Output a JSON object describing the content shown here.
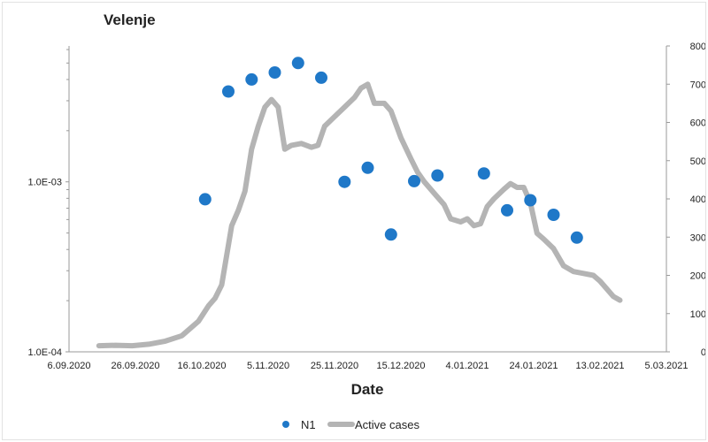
{
  "chart_data": {
    "type": "scatter+line",
    "title": "Velenje",
    "xlabel": "Date",
    "ylabel_left": "",
    "ylabel_right": "",
    "x_ticks": [
      "6.09.2020",
      "26.09.2020",
      "16.10.2020",
      "5.11.2020",
      "25.11.2020",
      "15.12.2020",
      "4.01.2021",
      "24.01.2021",
      "13.02.2021",
      "5.03.2021"
    ],
    "xlim": [
      "2020-09-06",
      "2021-03-05"
    ],
    "y_left": {
      "scale": "log",
      "ylim": [
        0.0001,
        0.0063
      ],
      "ticks": [
        "1.0E-04",
        "1.0E-03"
      ],
      "tick_values": [
        0.0001,
        0.001
      ]
    },
    "y_right": {
      "scale": "linear",
      "ylim": [
        0,
        800
      ],
      "ticks": [
        "0",
        "100",
        "200",
        "300",
        "400",
        "500",
        "600",
        "700",
        "800"
      ],
      "tick_values": [
        0,
        100,
        200,
        300,
        400,
        500,
        600,
        700,
        800
      ]
    },
    "legend": {
      "placement": "bottom",
      "entries": [
        "N1",
        "Active cases"
      ]
    },
    "series": [
      {
        "name": "N1",
        "type": "scatter",
        "axis": "left",
        "color": "#1f78c8",
        "points": [
          {
            "x": "2020-10-17",
            "y": 0.00079
          },
          {
            "x": "2020-10-24",
            "y": 0.0034
          },
          {
            "x": "2020-10-31",
            "y": 0.004
          },
          {
            "x": "2020-11-07",
            "y": 0.0044
          },
          {
            "x": "2020-11-14",
            "y": 0.005
          },
          {
            "x": "2020-11-21",
            "y": 0.0041
          },
          {
            "x": "2020-11-28",
            "y": 0.001
          },
          {
            "x": "2020-12-05",
            "y": 0.00121
          },
          {
            "x": "2020-12-12",
            "y": 0.00049
          },
          {
            "x": "2020-12-19",
            "y": 0.00101
          },
          {
            "x": "2020-12-26",
            "y": 0.00109
          },
          {
            "x": "2021-01-09",
            "y": 0.00112
          },
          {
            "x": "2021-01-16",
            "y": 0.00068
          },
          {
            "x": "2021-01-23",
            "y": 0.00078
          },
          {
            "x": "2021-01-30",
            "y": 0.00064
          },
          {
            "x": "2021-02-06",
            "y": 0.00047
          }
        ]
      },
      {
        "name": "Active cases",
        "type": "line",
        "axis": "right",
        "color": "#b4b4b4",
        "points": [
          {
            "x": "2020-09-15",
            "y": 16
          },
          {
            "x": "2020-09-20",
            "y": 17
          },
          {
            "x": "2020-09-25",
            "y": 16
          },
          {
            "x": "2020-09-30",
            "y": 20
          },
          {
            "x": "2020-10-05",
            "y": 28
          },
          {
            "x": "2020-10-10",
            "y": 42
          },
          {
            "x": "2020-10-15",
            "y": 80
          },
          {
            "x": "2020-10-18",
            "y": 120
          },
          {
            "x": "2020-10-20",
            "y": 140
          },
          {
            "x": "2020-10-22",
            "y": 175
          },
          {
            "x": "2020-10-25",
            "y": 330
          },
          {
            "x": "2020-10-27",
            "y": 370
          },
          {
            "x": "2020-10-29",
            "y": 420
          },
          {
            "x": "2020-10-31",
            "y": 530
          },
          {
            "x": "2020-11-02",
            "y": 590
          },
          {
            "x": "2020-11-04",
            "y": 640
          },
          {
            "x": "2020-11-06",
            "y": 660
          },
          {
            "x": "2020-11-08",
            "y": 640
          },
          {
            "x": "2020-11-10",
            "y": 530
          },
          {
            "x": "2020-11-12",
            "y": 540
          },
          {
            "x": "2020-11-15",
            "y": 545
          },
          {
            "x": "2020-11-18",
            "y": 535
          },
          {
            "x": "2020-11-20",
            "y": 540
          },
          {
            "x": "2020-11-22",
            "y": 590
          },
          {
            "x": "2020-11-25",
            "y": 615
          },
          {
            "x": "2020-11-28",
            "y": 640
          },
          {
            "x": "2020-12-01",
            "y": 665
          },
          {
            "x": "2020-12-03",
            "y": 690
          },
          {
            "x": "2020-12-05",
            "y": 700
          },
          {
            "x": "2020-12-07",
            "y": 650
          },
          {
            "x": "2020-12-10",
            "y": 650
          },
          {
            "x": "2020-12-12",
            "y": 630
          },
          {
            "x": "2020-12-15",
            "y": 560
          },
          {
            "x": "2020-12-18",
            "y": 505
          },
          {
            "x": "2020-12-20",
            "y": 470
          },
          {
            "x": "2020-12-22",
            "y": 445
          },
          {
            "x": "2020-12-25",
            "y": 415
          },
          {
            "x": "2020-12-28",
            "y": 385
          },
          {
            "x": "2020-12-30",
            "y": 348
          },
          {
            "x": "2021-01-02",
            "y": 340
          },
          {
            "x": "2021-01-04",
            "y": 348
          },
          {
            "x": "2021-01-06",
            "y": 330
          },
          {
            "x": "2021-01-08",
            "y": 335
          },
          {
            "x": "2021-01-10",
            "y": 380
          },
          {
            "x": "2021-01-12",
            "y": 400
          },
          {
            "x": "2021-01-15",
            "y": 425
          },
          {
            "x": "2021-01-17",
            "y": 440
          },
          {
            "x": "2021-01-19",
            "y": 430
          },
          {
            "x": "2021-01-21",
            "y": 430
          },
          {
            "x": "2021-01-23",
            "y": 390
          },
          {
            "x": "2021-01-25",
            "y": 310
          },
          {
            "x": "2021-01-27",
            "y": 295
          },
          {
            "x": "2021-01-30",
            "y": 270
          },
          {
            "x": "2021-02-02",
            "y": 225
          },
          {
            "x": "2021-02-05",
            "y": 210
          },
          {
            "x": "2021-02-08",
            "y": 205
          },
          {
            "x": "2021-02-11",
            "y": 200
          },
          {
            "x": "2021-02-13",
            "y": 185
          },
          {
            "x": "2021-02-15",
            "y": 165
          },
          {
            "x": "2021-02-17",
            "y": 145
          },
          {
            "x": "2021-02-19",
            "y": 135
          }
        ]
      }
    ]
  }
}
